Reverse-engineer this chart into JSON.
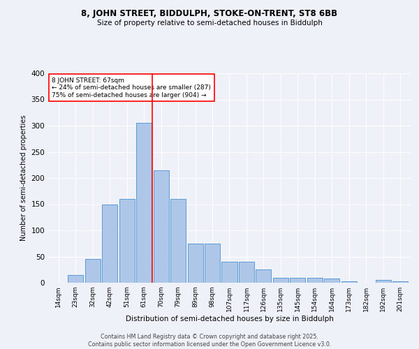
{
  "title1": "8, JOHN STREET, BIDDULPH, STOKE-ON-TRENT, ST8 6BB",
  "title2": "Size of property relative to semi-detached houses in Biddulph",
  "xlabel": "Distribution of semi-detached houses by size in Biddulph",
  "ylabel": "Number of semi-detached properties",
  "bin_labels": [
    "14sqm",
    "23sqm",
    "32sqm",
    "42sqm",
    "51sqm",
    "61sqm",
    "70sqm",
    "79sqm",
    "89sqm",
    "98sqm",
    "107sqm",
    "117sqm",
    "126sqm",
    "135sqm",
    "145sqm",
    "154sqm",
    "164sqm",
    "173sqm",
    "182sqm",
    "192sqm",
    "201sqm"
  ],
  "bar_values": [
    0,
    15,
    45,
    150,
    160,
    305,
    215,
    160,
    75,
    75,
    40,
    40,
    25,
    10,
    10,
    10,
    8,
    3,
    0,
    5,
    3
  ],
  "bar_color": "#aec6e8",
  "bar_edge_color": "#5b9bd5",
  "vline_x": 5.5,
  "vline_color": "red",
  "annotation_text": "8 JOHN STREET: 67sqm\n← 24% of semi-detached houses are smaller (287)\n75% of semi-detached houses are larger (904) →",
  "annotation_box_color": "white",
  "annotation_box_edge": "red",
  "bg_color": "#eef2f8",
  "grid_color": "white",
  "footer": "Contains HM Land Registry data © Crown copyright and database right 2025.\nContains public sector information licensed under the Open Government Licence v3.0.",
  "ylim": [
    0,
    400
  ],
  "yticks": [
    0,
    50,
    100,
    150,
    200,
    250,
    300,
    350,
    400
  ]
}
